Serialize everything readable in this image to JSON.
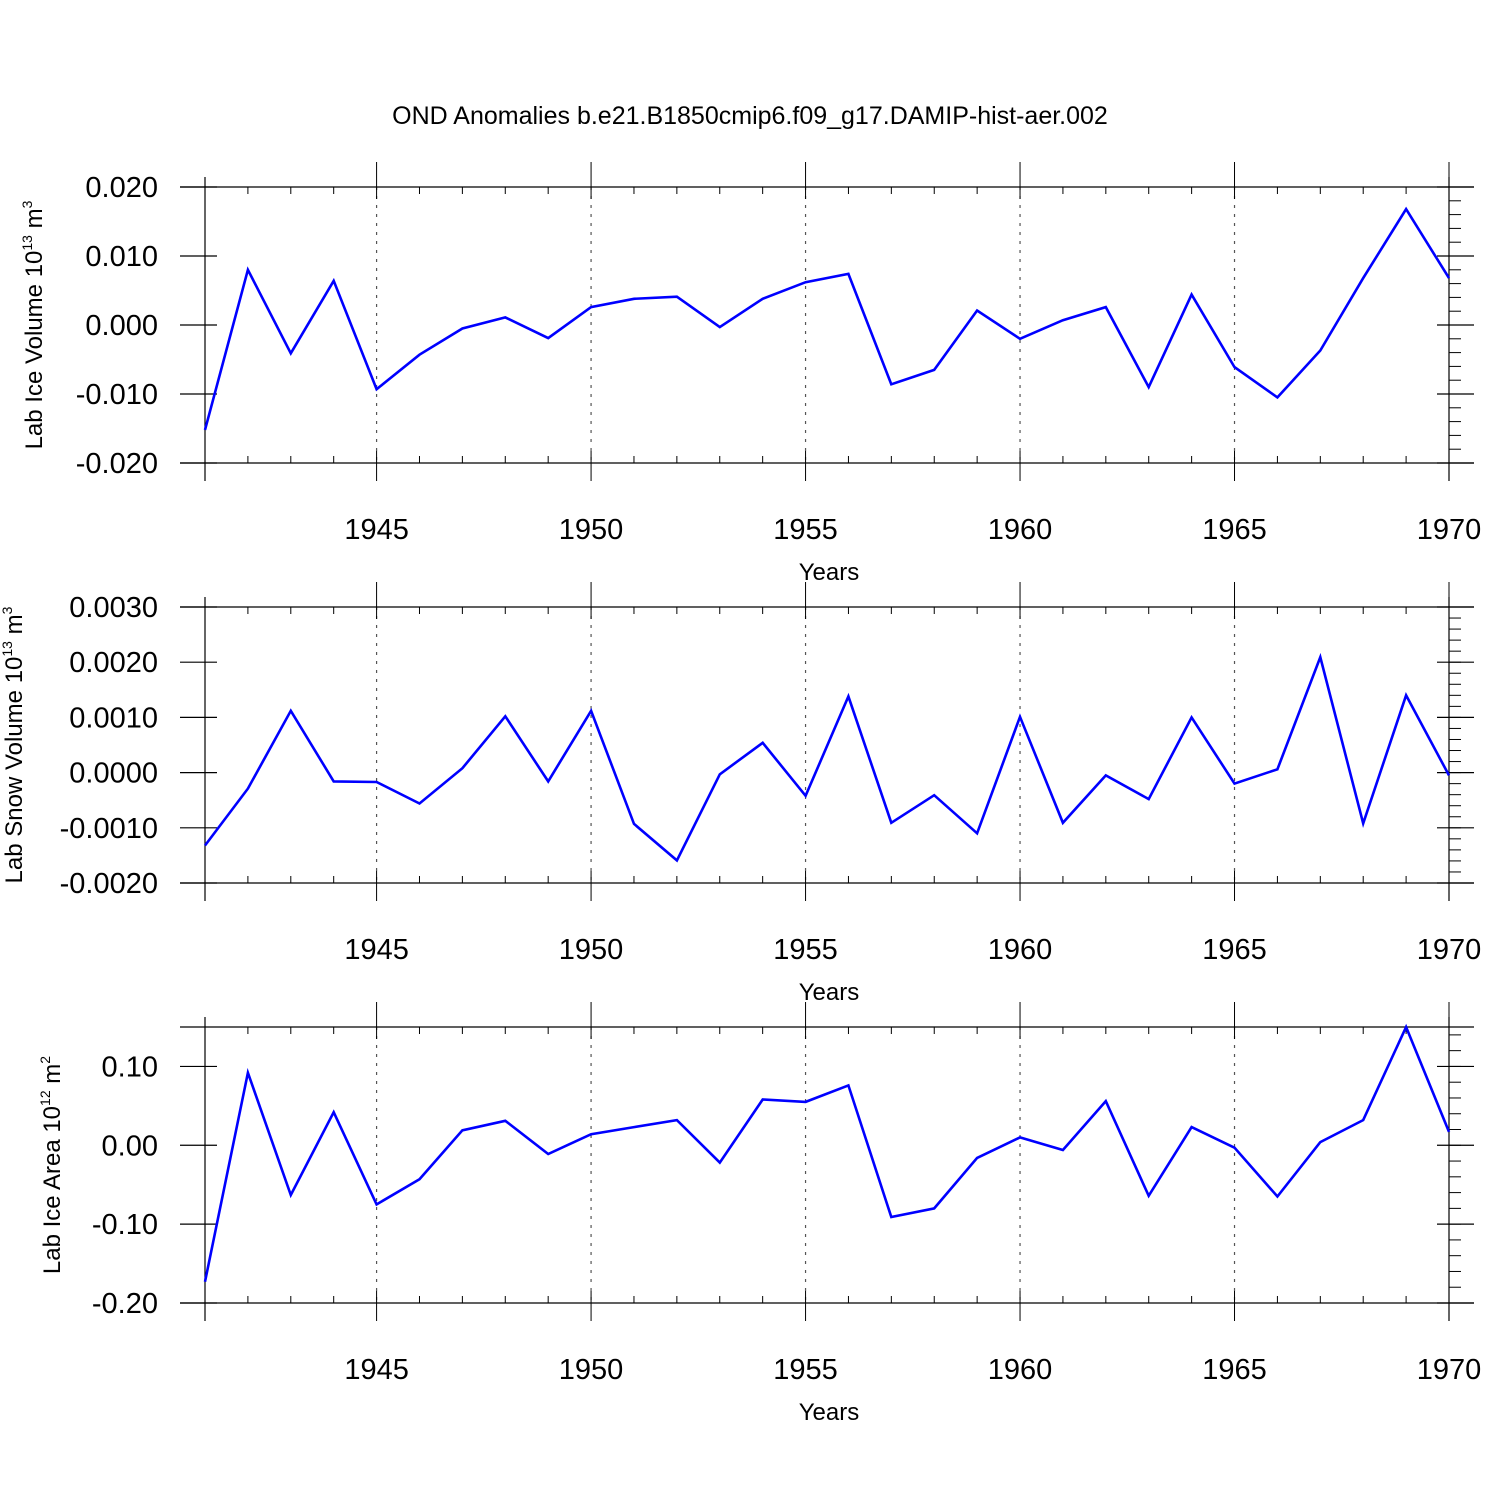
{
  "title": "OND Anomalies b.e21.B1850cmip6.f09_g17.DAMIP-hist-aer.002",
  "colors": {
    "line": "#0000ff",
    "axis": "#000000",
    "grid": "#555555"
  },
  "chart_data": [
    {
      "type": "line",
      "title": "OND Anomalies b.e21.B1850cmip6.f09_g17.DAMIP-hist-aer.002",
      "xlabel": "Years",
      "ylabel": "Lab Ice Volume 10",
      "ylabel_sup1": "13",
      "ylabel_mid": " m",
      "ylabel_sup2": "3",
      "xlim": [
        1941,
        1970
      ],
      "ylim": [
        -0.02,
        0.02
      ],
      "xticks": [
        1945,
        1950,
        1955,
        1960,
        1965,
        1970
      ],
      "xtick_labels": [
        "1945",
        "1950",
        "1955",
        "1960",
        "1965",
        "1970"
      ],
      "yticks": [
        -0.02,
        -0.01,
        0,
        0.01,
        0.02
      ],
      "ytick_labels": [
        "-0.020",
        "-0.010",
        "0.000",
        "0.010",
        "0.020"
      ],
      "grid": "vertical dashed at major x ticks",
      "series": [
        {
          "name": "Lab Ice Volume",
          "x": [
            1941,
            1942,
            1943,
            1944,
            1945,
            1946,
            1947,
            1948,
            1949,
            1950,
            1951,
            1952,
            1953,
            1954,
            1955,
            1956,
            1957,
            1958,
            1959,
            1960,
            1961,
            1962,
            1963,
            1964,
            1965,
            1966,
            1967,
            1968,
            1969,
            1970
          ],
          "values": [
            -0.0152,
            0.008,
            -0.0041,
            0.0064,
            -0.0093,
            -0.0043,
            -0.0005,
            0.0011,
            -0.0019,
            0.0026,
            0.0038,
            0.0041,
            -0.0003,
            0.0038,
            0.0062,
            0.0074,
            -0.0086,
            -0.0065,
            0.0021,
            -0.002,
            0.0007,
            0.0026,
            -0.009,
            0.0044,
            -0.0061,
            -0.0105,
            -0.0037,
            0.0068,
            0.0168,
            0.0068
          ]
        }
      ]
    },
    {
      "type": "line",
      "xlabel": "Years",
      "ylabel": "Lab Snow Volume 10",
      "ylabel_sup1": "13",
      "ylabel_mid": " m",
      "ylabel_sup2": "3",
      "xlim": [
        1941,
        1970
      ],
      "ylim": [
        -0.002,
        0.003
      ],
      "xticks": [
        1945,
        1950,
        1955,
        1960,
        1965,
        1970
      ],
      "xtick_labels": [
        "1945",
        "1950",
        "1955",
        "1960",
        "1965",
        "1970"
      ],
      "yticks": [
        -0.002,
        -0.001,
        0,
        0.001,
        0.002,
        0.003
      ],
      "ytick_labels": [
        "-0.0020",
        "-0.0010",
        "0.0000",
        "0.0010",
        "0.0020",
        "0.0030"
      ],
      "grid": "vertical dashed at major x ticks",
      "series": [
        {
          "name": "Lab Snow Volume",
          "x": [
            1941,
            1942,
            1943,
            1944,
            1945,
            1946,
            1947,
            1948,
            1949,
            1950,
            1951,
            1952,
            1953,
            1954,
            1955,
            1956,
            1957,
            1958,
            1959,
            1960,
            1961,
            1962,
            1963,
            1964,
            1965,
            1966,
            1967,
            1968,
            1969,
            1970
          ],
          "values": [
            -0.00132,
            -0.00029,
            0.00112,
            -0.00016,
            -0.00017,
            -0.00056,
            8e-05,
            0.00102,
            -0.00016,
            0.00112,
            -0.00093,
            -0.00159,
            -3e-05,
            0.00054,
            -0.00042,
            0.00138,
            -0.00091,
            -0.00041,
            -0.0011,
            0.00101,
            -0.00091,
            -5e-05,
            -0.00048,
            0.001,
            -0.0002,
            6e-05,
            0.00209,
            -0.00092,
            0.0014,
            -5e-05
          ]
        }
      ]
    },
    {
      "type": "line",
      "xlabel": "Years",
      "ylabel": "Lab Ice Area 10",
      "ylabel_sup1": "12",
      "ylabel_mid": " m",
      "ylabel_sup2": "2",
      "xlim": [
        1941,
        1970
      ],
      "ylim": [
        -0.2,
        0.15
      ],
      "xticks": [
        1945,
        1950,
        1955,
        1960,
        1965,
        1970
      ],
      "xtick_labels": [
        "1945",
        "1950",
        "1955",
        "1960",
        "1965",
        "1970"
      ],
      "yticks": [
        -0.2,
        -0.1,
        0,
        0.1
      ],
      "ytick_labels": [
        "-0.20",
        "-0.10",
        "0.00",
        "0.10"
      ],
      "grid": "vertical dashed at major x ticks",
      "series": [
        {
          "name": "Lab Ice Area",
          "x": [
            1941,
            1942,
            1943,
            1944,
            1945,
            1946,
            1947,
            1948,
            1949,
            1950,
            1951,
            1952,
            1953,
            1954,
            1955,
            1956,
            1957,
            1958,
            1959,
            1960,
            1961,
            1962,
            1963,
            1964,
            1965,
            1966,
            1967,
            1968,
            1969,
            1970
          ],
          "values": [
            -0.173,
            0.092,
            -0.063,
            0.042,
            -0.075,
            -0.043,
            0.019,
            0.031,
            -0.011,
            0.014,
            0.023,
            0.032,
            -0.022,
            0.058,
            0.055,
            0.076,
            -0.091,
            -0.08,
            -0.016,
            0.01,
            -0.006,
            0.056,
            -0.064,
            0.023,
            -0.003,
            -0.065,
            0.004,
            0.032,
            0.15,
            0.017
          ]
        }
      ]
    }
  ]
}
